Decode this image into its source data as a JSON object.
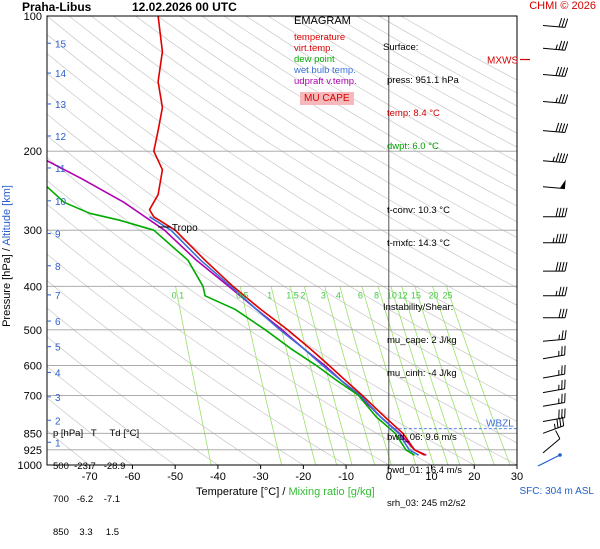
{
  "header": {
    "station": "Praha-Libus",
    "datetime": "12.02.2026 00 UTC",
    "credit": "CHMI © 2026"
  },
  "legend": {
    "title": "EMAGRAM",
    "items": [
      {
        "label": "temperature",
        "color": "#e00000"
      },
      {
        "label": "virt.temp.",
        "color": "#e00000"
      },
      {
        "label": "dew point",
        "color": "#00aa00"
      },
      {
        "label": "wet bulb temp.",
        "color": "#3a6fd8"
      },
      {
        "label": "udpraft v.temp.",
        "color": "#b000b0"
      }
    ],
    "mu_cape_label": "MU CAPE"
  },
  "surface": {
    "heading": "Surface:",
    "press": "press: 951.1 hPa",
    "temp": "temp: 8.4 °C",
    "dwpt": "dwpt: 6.0 °C",
    "tconv": "t-conv: 10.3 °C",
    "tmxfc": "t-mxfc: 14.3 °C"
  },
  "instability": {
    "heading": "Instability/Shear:",
    "mu_cape": "mu_cape: 2 J/kg",
    "mu_cinh": "mu_cinh: -4 J/kg",
    "bwd_06": "bwd_06: 9.6 m/s",
    "bwd_01": "bwd_01: 16.4 m/s",
    "srh_03": "srh_03: 245 m2/s2"
  },
  "mandatory_table": {
    "header": "p [hPa]   T     Td [°C]",
    "rows": [
      "500  -23.7   -28.9",
      "700   -6.2    -7.1",
      "850    3.3     1.5"
    ]
  },
  "annotations": {
    "tropo": "Tropo",
    "mxws": "MXWS",
    "wbzl": "WBZL",
    "sfc": "SFC: 304 m ASL"
  },
  "axis_titles": {
    "x_temp": "Temperature [°C]",
    "x_sep": " / ",
    "x_mix": "Mixing ratio [g/kg]",
    "y_press": "Pressure [hPa]",
    "y_sep": " / ",
    "y_alt": "Altitude [km]"
  },
  "colors": {
    "temperature": "#e00000",
    "dewpoint": "#00aa00",
    "wetbulb": "#3a6fd8",
    "updraft": "#b000b0",
    "mixing_ratio": "#9be06a",
    "dry_adiabat": "#c8c8c8",
    "moist_adiabat": "#aaaaaa",
    "isobar": "#a0a0a0",
    "altitude": "#2a5fcc"
  },
  "chart_data": {
    "type": "line",
    "title": "Praha-Libus 12.02.2026 00 UTC",
    "xlabel": "Temperature [°C]",
    "ylabel": "Pressure [hPa]",
    "xlim": [
      -80,
      30
    ],
    "ylim": [
      1000,
      100
    ],
    "y_scale": "log",
    "x_ticks": [
      -70,
      -60,
      -50,
      -40,
      -30,
      -20,
      -10,
      0,
      10,
      20,
      30
    ],
    "y_ticks": [
      100,
      200,
      300,
      400,
      500,
      600,
      700,
      850,
      925,
      1000
    ],
    "altitude_ticks_km": [
      {
        "km": 1,
        "p": 890
      },
      {
        "km": 2,
        "p": 795
      },
      {
        "km": 3,
        "p": 705
      },
      {
        "km": 4,
        "p": 622
      },
      {
        "km": 5,
        "p": 545
      },
      {
        "km": 6,
        "p": 478
      },
      {
        "km": 7,
        "p": 418
      },
      {
        "km": 8,
        "p": 360
      },
      {
        "km": 9,
        "p": 305
      },
      {
        "km": 10,
        "p": 258
      },
      {
        "km": 11,
        "p": 218
      },
      {
        "km": 12,
        "p": 185
      },
      {
        "km": 13,
        "p": 157
      },
      {
        "km": 14,
        "p": 134
      },
      {
        "km": 15,
        "p": 115
      }
    ],
    "mixing_ratio_labels": [
      "0.1",
      "0.5",
      "1",
      "1.5",
      "2",
      "3",
      "4",
      "6",
      "8",
      "10",
      "12",
      "15",
      "20",
      "25"
    ],
    "mixing_ratio_values": [
      0.1,
      0.5,
      1,
      1.5,
      2,
      3,
      4,
      6,
      8,
      10,
      12,
      15,
      20,
      25
    ],
    "series": [
      {
        "name": "temperature",
        "points": [
          [
            8.4,
            951
          ],
          [
            6,
            925
          ],
          [
            3.3,
            850
          ],
          [
            -1,
            780
          ],
          [
            -6.2,
            700
          ],
          [
            -10,
            650
          ],
          [
            -14,
            600
          ],
          [
            -18.5,
            550
          ],
          [
            -23.7,
            500
          ],
          [
            -30,
            450
          ],
          [
            -36.5,
            400
          ],
          [
            -43,
            350
          ],
          [
            -50,
            300
          ],
          [
            -55,
            280
          ],
          [
            -56,
            270
          ],
          [
            -54,
            250
          ],
          [
            -53,
            220
          ],
          [
            -55,
            200
          ],
          [
            -54,
            180
          ],
          [
            -53,
            160
          ],
          [
            -54,
            140
          ],
          [
            -53,
            120
          ],
          [
            -54,
            100
          ]
        ]
      },
      {
        "name": "dew point",
        "points": [
          [
            6,
            951
          ],
          [
            4,
            925
          ],
          [
            1.5,
            850
          ],
          [
            -3,
            780
          ],
          [
            -7.1,
            700
          ],
          [
            -12,
            650
          ],
          [
            -17,
            600
          ],
          [
            -23,
            550
          ],
          [
            -28.9,
            500
          ],
          [
            -36,
            450
          ],
          [
            -43,
            420
          ],
          [
            -43.5,
            400
          ],
          [
            -47,
            350
          ],
          [
            -55,
            300
          ],
          [
            -63,
            285
          ],
          [
            -70,
            275
          ],
          [
            -76,
            260
          ],
          [
            -80,
            240
          ]
        ]
      },
      {
        "name": "wet bulb temp.",
        "points": [
          [
            7,
            951
          ],
          [
            4.8,
            925
          ],
          [
            2.3,
            850
          ],
          [
            -2,
            780
          ],
          [
            -6.6,
            700
          ],
          [
            -11,
            650
          ],
          [
            -15.5,
            600
          ],
          [
            -20,
            550
          ],
          [
            -25.5,
            500
          ],
          [
            -31,
            450
          ],
          [
            -37,
            400
          ],
          [
            -44,
            350
          ],
          [
            -51,
            300
          ],
          [
            -56,
            280
          ]
        ]
      },
      {
        "name": "udpraft v.temp.",
        "points": [
          [
            8.8,
            951
          ],
          [
            6,
            925
          ],
          [
            2.5,
            850
          ],
          [
            -2,
            780
          ],
          [
            -7,
            700
          ],
          [
            -11,
            650
          ],
          [
            -15,
            600
          ],
          [
            -20,
            550
          ],
          [
            -25,
            500
          ],
          [
            -31,
            450
          ],
          [
            -37.5,
            400
          ],
          [
            -45,
            350
          ],
          [
            -52.5,
            300
          ],
          [
            -62,
            260
          ],
          [
            -72,
            230
          ],
          [
            -80,
            210
          ]
        ]
      }
    ],
    "wind_barbs": [
      {
        "p": 940,
        "dir": 230,
        "speed_kt": 10
      },
      {
        "p": 850,
        "dir": 250,
        "speed_kt": 35
      },
      {
        "p": 800,
        "dir": 260,
        "speed_kt": 30
      },
      {
        "p": 740,
        "dir": 260,
        "speed_kt": 25
      },
      {
        "p": 690,
        "dir": 260,
        "speed_kt": 25
      },
      {
        "p": 640,
        "dir": 260,
        "speed_kt": 25
      },
      {
        "p": 580,
        "dir": 260,
        "speed_kt": 25
      },
      {
        "p": 530,
        "dir": 265,
        "speed_kt": 25
      },
      {
        "p": 470,
        "dir": 270,
        "speed_kt": 30
      },
      {
        "p": 420,
        "dir": 270,
        "speed_kt": 35
      },
      {
        "p": 370,
        "dir": 270,
        "speed_kt": 40
      },
      {
        "p": 320,
        "dir": 270,
        "speed_kt": 45
      },
      {
        "p": 280,
        "dir": 270,
        "speed_kt": 40
      },
      {
        "p": 240,
        "dir": 275,
        "speed_kt": 50
      },
      {
        "p": 210,
        "dir": 275,
        "speed_kt": 45
      },
      {
        "p": 180,
        "dir": 275,
        "speed_kt": 40
      },
      {
        "p": 155,
        "dir": 275,
        "speed_kt": 35
      },
      {
        "p": 135,
        "dir": 275,
        "speed_kt": 40
      },
      {
        "p": 118,
        "dir": 275,
        "speed_kt": 35
      },
      {
        "p": 105,
        "dir": 275,
        "speed_kt": 30
      }
    ],
    "markers": {
      "tropopause_p": 295,
      "mxws_p": 125,
      "wbzl_p": 830
    }
  }
}
